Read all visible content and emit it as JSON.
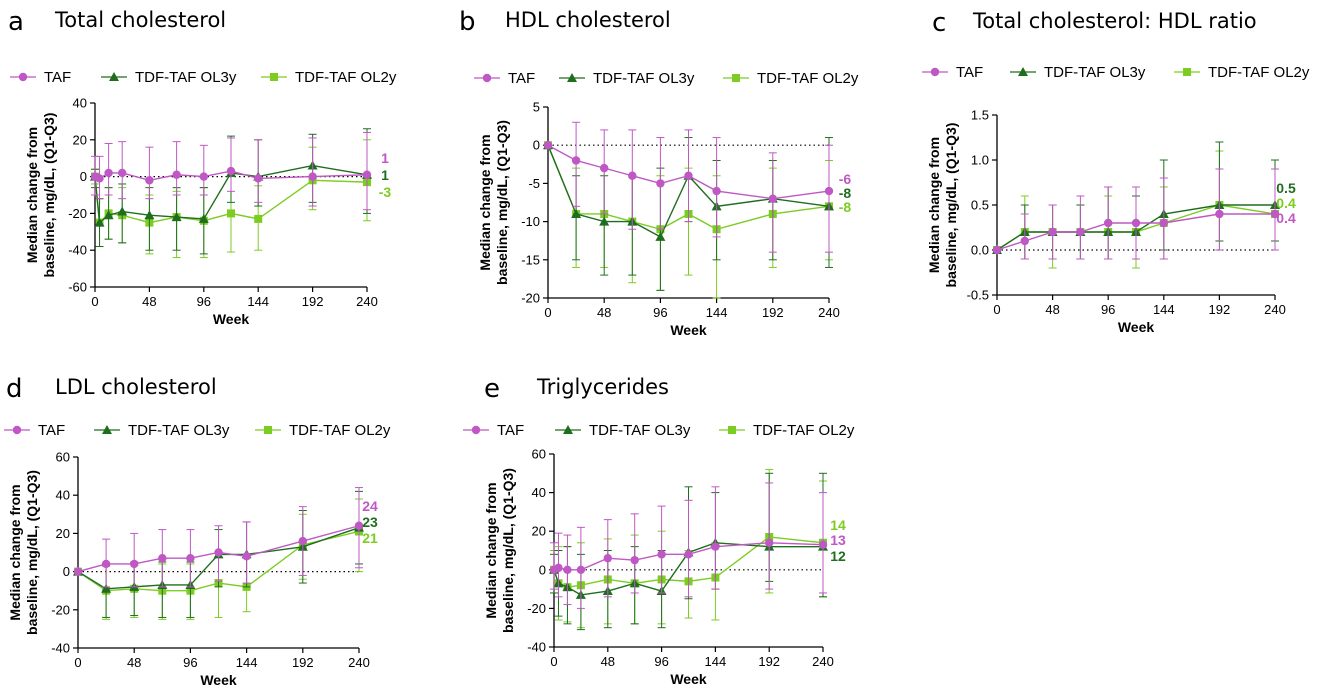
{
  "colors": {
    "TAF": "#bf58c4",
    "TDF-TAF OL3y": "#1f6e1f",
    "TDF-TAF OL2y": "#7ccc21"
  },
  "chart_data": [
    {
      "type": "line",
      "letter": "a",
      "title": "Total cholesterol",
      "xlabel": "Week",
      "ylabel": [
        "Median change from",
        "baseline, mg/dL, (Q1-Q3)"
      ],
      "xlim": [
        0,
        240
      ],
      "ylim": [
        -60,
        40
      ],
      "xticks": [
        0,
        48,
        96,
        144,
        192,
        240
      ],
      "yticks": [
        -60,
        -40,
        -20,
        0,
        20,
        40
      ],
      "reference_line_y": 0,
      "legend": [
        "TAF",
        "TDF-TAF OL3y",
        "TDF-TAF OL2y"
      ],
      "series": [
        {
          "name": "TAF",
          "marker": "circle",
          "x": [
            0,
            4,
            12,
            24,
            48,
            72,
            96,
            120,
            144,
            192,
            240
          ],
          "y": [
            0,
            -1,
            2,
            2,
            -2,
            1,
            0,
            3,
            -1,
            0,
            1
          ],
          "low": [
            -10,
            -12,
            -10,
            -12,
            -12,
            -10,
            -10,
            -8,
            -14,
            -16,
            -18
          ],
          "high": [
            11,
            11,
            18,
            19,
            16,
            19,
            17,
            21,
            20,
            21,
            24
          ]
        },
        {
          "name": "TDF-TAF OL3y",
          "marker": "triangle",
          "x": [
            0,
            4,
            12,
            24,
            48,
            72,
            96,
            120,
            144,
            192,
            240
          ],
          "y": [
            0,
            -25,
            -21,
            -19,
            -21,
            -22,
            -23,
            2,
            0,
            6,
            1
          ],
          "low": [
            -6,
            -38,
            -34,
            -36,
            -40,
            -40,
            -42,
            -14,
            -16,
            -14,
            -20
          ],
          "high": [
            4,
            -12,
            -6,
            -4,
            -6,
            -6,
            -6,
            22,
            20,
            23,
            26
          ]
        },
        {
          "name": "TDF-TAF OL2y",
          "marker": "square",
          "x": [
            0,
            4,
            12,
            24,
            48,
            72,
            96,
            120,
            144,
            192,
            240
          ],
          "y": [
            0,
            -25,
            -20,
            -21,
            -25,
            -22,
            -24,
            -20,
            -23,
            -2,
            -3
          ],
          "low": [
            -4,
            -38,
            -34,
            -36,
            -42,
            -44,
            -44,
            -41,
            -40,
            -18,
            -24
          ],
          "high": [
            4,
            -12,
            -6,
            -6,
            -10,
            -8,
            -6,
            0,
            -5,
            16,
            20
          ]
        }
      ],
      "end_labels": [
        {
          "text": "1",
          "series": "TAF"
        },
        {
          "text": "1",
          "series": "TDF-TAF OL3y"
        },
        {
          "text": "-3",
          "series": "TDF-TAF OL2y"
        }
      ]
    },
    {
      "type": "line",
      "letter": "b",
      "title": "HDL cholesterol",
      "xlabel": "Week",
      "ylabel": [
        "Median change from",
        "baseline, mg/dL, (Q1-Q3)"
      ],
      "xlim": [
        0,
        240
      ],
      "ylim": [
        -20,
        5
      ],
      "xticks": [
        0,
        48,
        96,
        144,
        192,
        240
      ],
      "yticks": [
        -20,
        -15,
        -10,
        -5,
        0,
        5
      ],
      "reference_line_y": 0,
      "legend": [
        "TAF",
        "TDF-TAF OL3y",
        "TDF-TAF OL2y"
      ],
      "series": [
        {
          "name": "TAF",
          "marker": "circle",
          "x": [
            0,
            24,
            48,
            72,
            96,
            120,
            144,
            192,
            240
          ],
          "y": [
            0,
            -2,
            -3,
            -4,
            -5,
            -4,
            -6,
            -7,
            -6
          ],
          "low": [
            0,
            -8,
            -9,
            -11,
            -11,
            -10,
            -12,
            -14,
            -14
          ],
          "high": [
            0,
            3,
            2,
            2,
            1,
            2,
            1,
            -1,
            0
          ]
        },
        {
          "name": "TDF-TAF OL3y",
          "marker": "triangle",
          "x": [
            0,
            24,
            48,
            72,
            96,
            120,
            144,
            192,
            240
          ],
          "y": [
            0,
            -9,
            -10,
            -10,
            -12,
            -4,
            -8,
            -7,
            -8
          ],
          "low": [
            0,
            -15,
            -17,
            -17,
            -19,
            -10,
            -15,
            -15,
            -16
          ],
          "high": [
            0,
            -4,
            -4,
            -4,
            -3,
            1,
            -2,
            -2,
            1
          ]
        },
        {
          "name": "TDF-TAF OL2y",
          "marker": "square",
          "x": [
            0,
            24,
            48,
            72,
            96,
            120,
            144,
            192,
            240
          ],
          "y": [
            0,
            -9,
            -9,
            -10,
            -11,
            -9,
            -11,
            -9,
            -8
          ],
          "low": [
            0,
            -16,
            -16,
            -18,
            -19,
            -17,
            -20,
            -16,
            -15
          ],
          "high": [
            0,
            -3,
            -3,
            -4,
            -4,
            -3,
            -4,
            -3,
            -2
          ]
        }
      ],
      "end_labels": [
        {
          "text": "-6",
          "series": "TAF"
        },
        {
          "text": "-8",
          "series": "TDF-TAF OL3y"
        },
        {
          "text": "-8",
          "series": "TDF-TAF OL2y"
        }
      ]
    },
    {
      "type": "line",
      "letter": "c",
      "title": "Total cholesterol: HDL ratio",
      "xlabel": "Week",
      "ylabel": [
        "Median change from",
        "baseline, mg/dL, (Q1-Q3)"
      ],
      "xlim": [
        0,
        240
      ],
      "ylim": [
        -0.5,
        1.5
      ],
      "xticks": [
        0,
        48,
        96,
        144,
        192,
        240
      ],
      "yticks": [
        -0.5,
        0.0,
        0.5,
        1.0,
        1.5
      ],
      "reference_line_y": 0,
      "legend": [
        "TAF",
        "TDF-TAF OL3y",
        "TDF-TAF OL2y"
      ],
      "series": [
        {
          "name": "TAF",
          "marker": "circle",
          "x": [
            0,
            24,
            48,
            72,
            96,
            120,
            144,
            192,
            240
          ],
          "y": [
            0,
            0.1,
            0.2,
            0.2,
            0.3,
            0.3,
            0.3,
            0.4,
            0.4
          ],
          "low": [
            0,
            -0.1,
            -0.1,
            -0.1,
            -0.1,
            -0.1,
            -0.1,
            0.0,
            0.0
          ],
          "high": [
            0,
            0.4,
            0.5,
            0.6,
            0.7,
            0.7,
            0.8,
            0.9,
            0.9
          ]
        },
        {
          "name": "TDF-TAF OL3y",
          "marker": "triangle",
          "x": [
            0,
            24,
            48,
            72,
            96,
            120,
            144,
            192,
            240
          ],
          "y": [
            0,
            0.2,
            0.2,
            0.2,
            0.2,
            0.2,
            0.4,
            0.5,
            0.5
          ],
          "low": [
            0,
            -0.1,
            -0.1,
            -0.1,
            -0.1,
            -0.1,
            0.0,
            0.1,
            0.1
          ],
          "high": [
            0,
            0.5,
            0.5,
            0.5,
            0.7,
            0.6,
            1.0,
            1.2,
            1.0
          ]
        },
        {
          "name": "TDF-TAF OL2y",
          "marker": "square",
          "x": [
            0,
            24,
            48,
            72,
            96,
            120,
            144,
            192,
            240
          ],
          "y": [
            0,
            0.2,
            0.2,
            0.2,
            0.2,
            0.2,
            0.3,
            0.5,
            0.4
          ],
          "low": [
            0,
            -0.1,
            -0.2,
            -0.1,
            -0.1,
            -0.2,
            -0.1,
            0.0,
            0.0
          ],
          "high": [
            0,
            0.6,
            0.5,
            0.5,
            0.6,
            0.6,
            0.7,
            1.1,
            0.9
          ]
        }
      ],
      "end_labels": [
        {
          "text": "0.5",
          "series": "TDF-TAF OL3y"
        },
        {
          "text": "0.4",
          "series": "TDF-TAF OL2y"
        },
        {
          "text": "0.4",
          "series": "TAF"
        }
      ]
    },
    {
      "type": "line",
      "letter": "d",
      "title": "LDL cholesterol",
      "xlabel": "Week",
      "ylabel": [
        "Median change from",
        "baseline, mg/dL, (Q1-Q3)"
      ],
      "xlim": [
        0,
        240
      ],
      "ylim": [
        -40,
        60
      ],
      "xticks": [
        0,
        48,
        96,
        144,
        192,
        240
      ],
      "yticks": [
        -40,
        -20,
        0,
        20,
        40,
        60
      ],
      "reference_line_y": 0,
      "legend": [
        "TAF",
        "TDF-TAF OL3y",
        "TDF-TAF OL2y"
      ],
      "series": [
        {
          "name": "TAF",
          "marker": "circle",
          "x": [
            0,
            24,
            48,
            72,
            96,
            120,
            144,
            192,
            240
          ],
          "y": [
            0,
            4,
            4,
            7,
            7,
            10,
            8,
            16,
            24
          ],
          "low": [
            0,
            -8,
            -8,
            -8,
            -8,
            -5,
            -6,
            -2,
            2
          ],
          "high": [
            0,
            17,
            20,
            22,
            22,
            24,
            26,
            34,
            44
          ]
        },
        {
          "name": "TDF-TAF OL3y",
          "marker": "triangle",
          "x": [
            0,
            24,
            48,
            72,
            96,
            120,
            144,
            192,
            240
          ],
          "y": [
            0,
            -9,
            -8,
            -7,
            -7,
            9,
            9,
            13,
            23
          ],
          "low": [
            0,
            -24,
            -23,
            -24,
            -24,
            -8,
            -8,
            -6,
            4
          ],
          "high": [
            0,
            3,
            5,
            5,
            5,
            22,
            26,
            32,
            42
          ]
        },
        {
          "name": "TDF-TAF OL2y",
          "marker": "square",
          "x": [
            0,
            24,
            48,
            72,
            96,
            120,
            144,
            192,
            240
          ],
          "y": [
            0,
            -10,
            -9,
            -10,
            -10,
            -6,
            -8,
            14,
            21
          ],
          "low": [
            0,
            -25,
            -24,
            -25,
            -25,
            -24,
            -21,
            -4,
            0
          ],
          "high": [
            0,
            3,
            4,
            4,
            4,
            10,
            8,
            30,
            38
          ]
        }
      ],
      "end_labels": [
        {
          "text": "24",
          "series": "TAF"
        },
        {
          "text": "23",
          "series": "TDF-TAF OL3y"
        },
        {
          "text": "21",
          "series": "TDF-TAF OL2y"
        }
      ]
    },
    {
      "type": "line",
      "letter": "e",
      "title": "Triglycerides",
      "xlabel": "Week",
      "ylabel": [
        "Median change from",
        "baseline, mg/dL, (Q1-Q3)"
      ],
      "xlim": [
        0,
        240
      ],
      "ylim": [
        -40,
        60
      ],
      "xticks": [
        0,
        48,
        96,
        144,
        192,
        240
      ],
      "yticks": [
        -40,
        -20,
        0,
        20,
        40,
        60
      ],
      "reference_line_y": 0,
      "legend": [
        "TAF",
        "TDF-TAF OL3y",
        "TDF-TAF OL2y"
      ],
      "series": [
        {
          "name": "TAF",
          "marker": "circle",
          "x": [
            0,
            4,
            12,
            24,
            48,
            72,
            96,
            120,
            144,
            192,
            240
          ],
          "y": [
            0,
            1,
            0,
            0,
            6,
            5,
            8,
            8,
            12,
            14,
            13
          ],
          "low": [
            -10,
            -14,
            -18,
            -20,
            -14,
            -12,
            -12,
            -14,
            -10,
            -10,
            -12
          ],
          "high": [
            14,
            19,
            18,
            22,
            26,
            29,
            33,
            36,
            43,
            45,
            40
          ]
        },
        {
          "name": "TDF-TAF OL3y",
          "marker": "triangle",
          "x": [
            0,
            4,
            12,
            24,
            48,
            72,
            96,
            120,
            144,
            192,
            240
          ],
          "y": [
            0,
            -7,
            -9,
            -13,
            -11,
            -7,
            -11,
            9,
            14,
            12,
            12
          ],
          "low": [
            -12,
            -24,
            -28,
            -31,
            -30,
            -28,
            -30,
            -15,
            -10,
            -6,
            -14
          ],
          "high": [
            8,
            10,
            12,
            8,
            10,
            12,
            10,
            43,
            40,
            50,
            50
          ]
        },
        {
          "name": "TDF-TAF OL2y",
          "marker": "square",
          "x": [
            0,
            4,
            12,
            24,
            48,
            72,
            96,
            120,
            144,
            192,
            240
          ],
          "y": [
            0,
            -7,
            -9,
            -8,
            -5,
            -7,
            -5,
            -6,
            -4,
            17,
            14
          ],
          "low": [
            -12,
            -26,
            -27,
            -30,
            -28,
            -28,
            -28,
            -25,
            -26,
            -12,
            -14
          ],
          "high": [
            10,
            12,
            12,
            14,
            16,
            18,
            20,
            10,
            14,
            52,
            46
          ]
        }
      ],
      "end_labels": [
        {
          "text": "14",
          "series": "TDF-TAF OL2y"
        },
        {
          "text": "13",
          "series": "TAF"
        },
        {
          "text": "12",
          "series": "TDF-TAF OL3y"
        }
      ]
    }
  ]
}
